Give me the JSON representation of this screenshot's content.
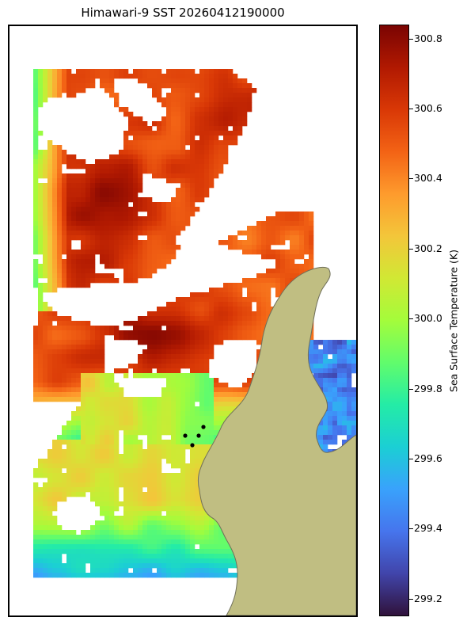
{
  "title": "Himawari-9 SST 20260412190000",
  "colorbar": {
    "label": "Sea Surface Temperature (K)",
    "min": 299.15,
    "max": 300.84,
    "ticks": [
      "299.2",
      "299.4",
      "299.6",
      "299.8",
      "300.0",
      "300.2",
      "300.4",
      "300.6",
      "300.8"
    ],
    "colormap": "turbo",
    "stops": [
      "#30123b",
      "#4145ab",
      "#4675ed",
      "#39a2fc",
      "#1bcfd4",
      "#24eca6",
      "#61fc6c",
      "#a4fc3b",
      "#d1e834",
      "#f3c63a",
      "#fe9b2d",
      "#f36315",
      "#d93806",
      "#b11901",
      "#7a0402"
    ]
  },
  "map": {
    "land_color": "#c0be82",
    "coast_color": "#6f6f5a",
    "markers": {
      "count": 5,
      "color": "#000000"
    }
  }
}
